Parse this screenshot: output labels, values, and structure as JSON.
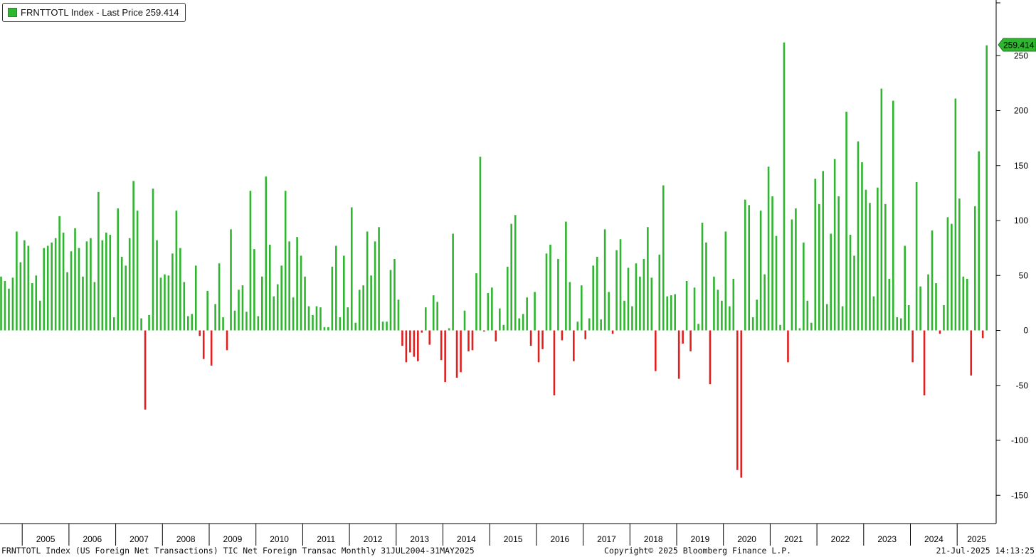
{
  "legend": {
    "label": "FRNTTOTL Index - Last Price 259.414",
    "color": "#2fb52f"
  },
  "last_value_tag": "259.414",
  "footer": {
    "description": "FRNTTOTL Index (US Foreign Net Transactions) TIC Net Foreign Transac  Monthly 31JUL2004-31MAY2025",
    "copyright": "Copyright© 2025 Bloomberg Finance L.P.",
    "timestamp": "21-Jul-2025 14:13:25"
  },
  "colors": {
    "positive": "#2fb52f",
    "negative": "#e01f1f"
  },
  "chart_data": {
    "type": "bar",
    "title": "",
    "xlabel": "",
    "ylabel": "",
    "ylim": [
      -173,
      300
    ],
    "yticks": [
      -150,
      -100,
      -50,
      0,
      50,
      100,
      150,
      200,
      250
    ],
    "years": [
      "2005",
      "2006",
      "2007",
      "2008",
      "2009",
      "2010",
      "2011",
      "2012",
      "2013",
      "2014",
      "2015",
      "2016",
      "2017",
      "2018",
      "2019",
      "2020",
      "2021",
      "2022",
      "2023",
      "2024",
      "2025"
    ],
    "start_month": "2004-07",
    "end_month": "2025-05",
    "grid": false,
    "legend_position": "top-left",
    "last_value": 259.414,
    "series": [
      {
        "name": "FRNTTOTL Index - Last Price",
        "values": [
          49,
          45,
          38,
          48,
          90,
          62,
          82,
          77,
          43,
          50,
          27,
          75,
          77,
          80,
          84,
          104,
          89,
          53,
          72,
          93,
          75,
          49,
          81,
          84,
          44,
          126,
          82,
          89,
          87,
          12,
          111,
          67,
          59,
          84,
          136,
          109,
          11,
          -72,
          14,
          129,
          82,
          48,
          51,
          50,
          70,
          109,
          75,
          44,
          13,
          15,
          59,
          -5,
          -26,
          36,
          -32,
          24,
          61,
          12,
          -18,
          92,
          18,
          37,
          41,
          17,
          127,
          74,
          13,
          49,
          140,
          78,
          31,
          42,
          59,
          127,
          81,
          30,
          85,
          68,
          49,
          22,
          14,
          22,
          21,
          3,
          3,
          58,
          77,
          12,
          68,
          21,
          112,
          7,
          37,
          41,
          90,
          50,
          81,
          94,
          8,
          8,
          55,
          65,
          28,
          -14,
          -29,
          -20,
          -24,
          -28,
          -2,
          21,
          -13,
          32,
          26,
          -27,
          -47,
          2,
          88,
          -43,
          -38,
          18,
          -19,
          -18,
          52,
          158,
          -1,
          34,
          39,
          -10,
          20,
          5,
          58,
          97,
          105,
          11,
          15,
          30,
          -14,
          35,
          -29,
          -17,
          70,
          78,
          -59,
          65,
          -9,
          99,
          44,
          -28,
          8,
          41,
          -8,
          11,
          59,
          67,
          10,
          92,
          35,
          -3,
          73,
          83,
          27,
          57,
          22,
          61,
          49,
          65,
          94,
          48,
          -37,
          69,
          132,
          31,
          32,
          33,
          -44,
          -12,
          45,
          -19,
          39,
          6,
          98,
          80,
          -49,
          49,
          37,
          27,
          90,
          22,
          47,
          -127,
          -134,
          119,
          114,
          12,
          28,
          109,
          51,
          149,
          122,
          86,
          5,
          262,
          -29,
          101,
          111,
          2,
          80,
          27,
          7,
          138,
          115,
          145,
          24,
          88,
          156,
          122,
          22,
          199,
          87,
          68,
          172,
          153,
          128,
          116,
          31,
          130,
          220,
          115,
          47,
          209,
          12,
          11,
          77,
          23,
          -29,
          135,
          40,
          -59,
          51,
          91,
          43,
          -3,
          23,
          103,
          97,
          211,
          120,
          49,
          47,
          -41,
          113,
          163,
          -7,
          259.414
        ]
      }
    ]
  }
}
